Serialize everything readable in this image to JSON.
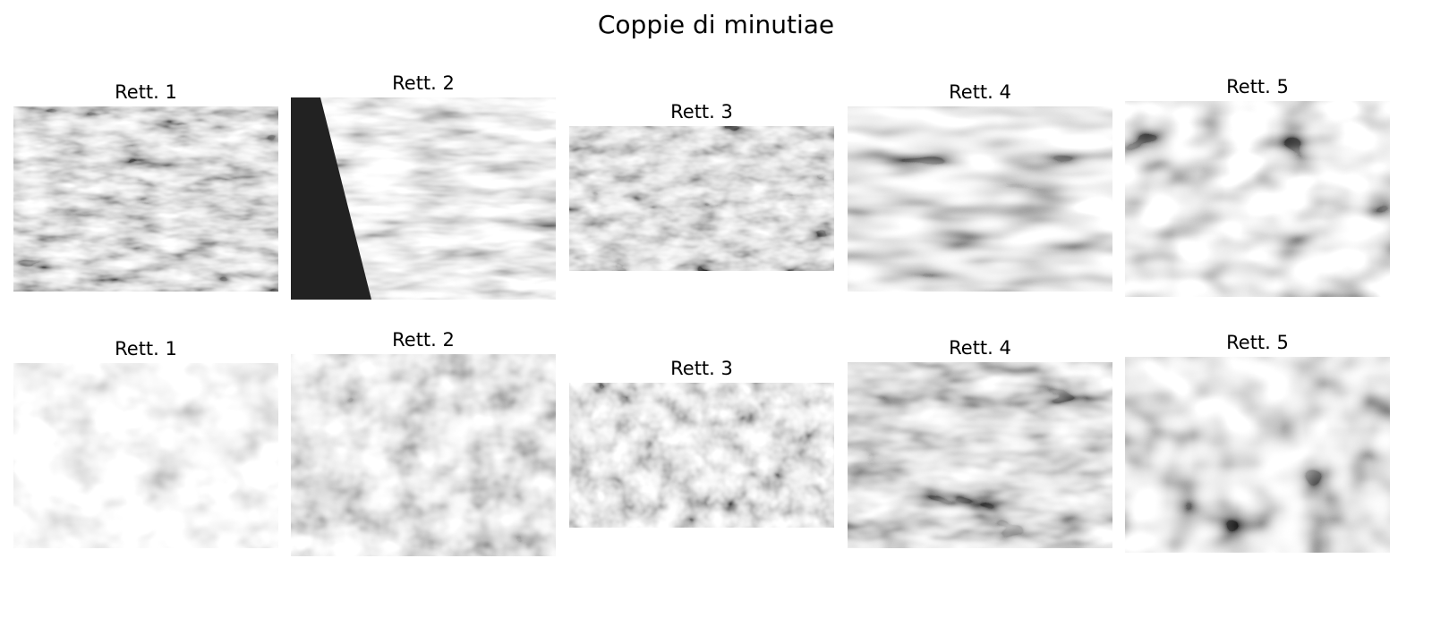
{
  "figure": {
    "title": "Coppie di minutiae"
  },
  "rows": [
    {
      "panels": [
        {
          "title": "Rett. 1"
        },
        {
          "title": "Rett. 2"
        },
        {
          "title": "Rett. 3"
        },
        {
          "title": "Rett. 4"
        },
        {
          "title": "Rett. 5"
        }
      ]
    },
    {
      "panels": [
        {
          "title": "Rett. 1"
        },
        {
          "title": "Rett. 2"
        },
        {
          "title": "Rett. 3"
        },
        {
          "title": "Rett. 4"
        },
        {
          "title": "Rett. 5"
        }
      ]
    }
  ],
  "colors": {
    "background": "#ffffff",
    "image_dark": "#222222",
    "image_light": "#f2f2f2"
  }
}
